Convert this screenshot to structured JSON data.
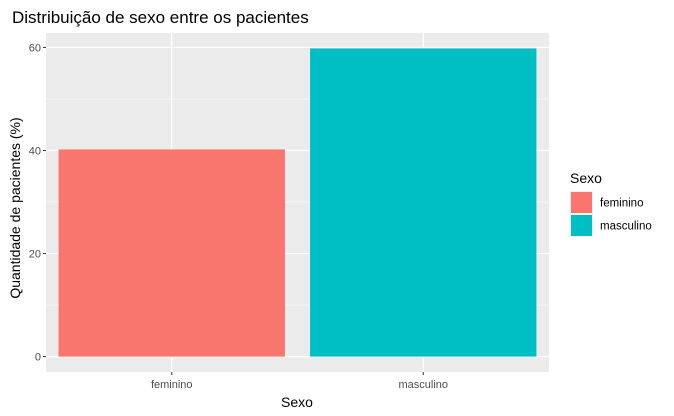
{
  "chart_data": {
    "type": "bar",
    "title": "Distribuição de sexo entre os pacientes",
    "xlabel": "Sexo",
    "ylabel": "Quantidade de pacientes (%)",
    "categories": [
      "feminino",
      "masculino"
    ],
    "values": [
      40.2,
      59.8
    ],
    "ylim": [
      -2.99,
      62.8
    ],
    "yticks": [
      0,
      20,
      40,
      60
    ],
    "grid": true,
    "legend": {
      "title": "Sexo",
      "position": "right",
      "entries": [
        "feminino",
        "masculino"
      ]
    },
    "colors": [
      "#F8766D",
      "#00BFC4"
    ],
    "panel_background": "#EBEBEB",
    "grid_color": "#FFFFFF"
  }
}
